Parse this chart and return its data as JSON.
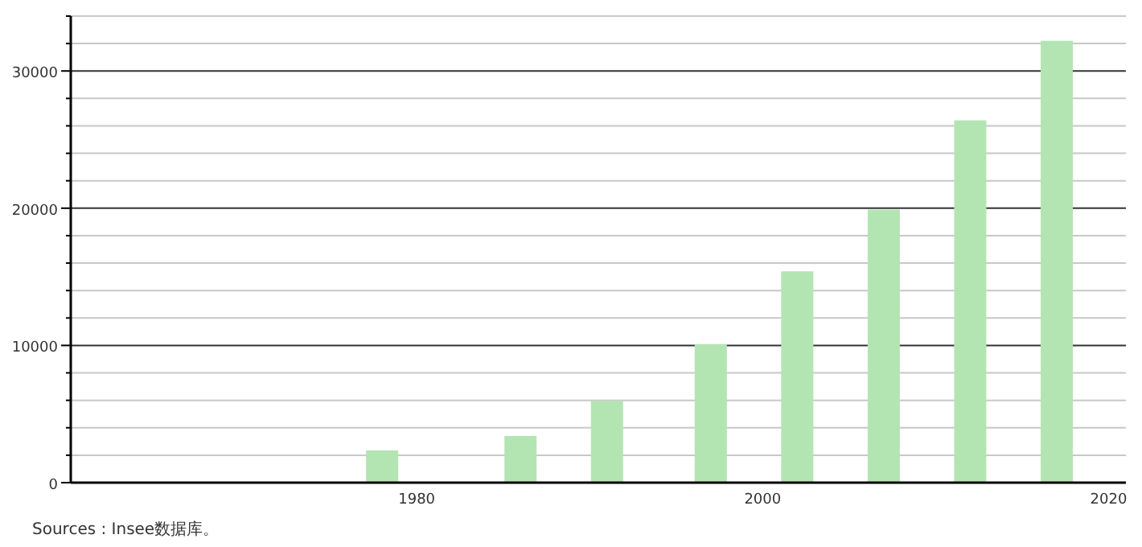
{
  "chart_data": {
    "type": "bar",
    "x": [
      1978,
      1986,
      1991,
      1997,
      2002,
      2007,
      2012,
      2017
    ],
    "values": [
      2350,
      3400,
      5960,
      10100,
      15400,
      19900,
      26400,
      32200
    ],
    "color": "#b3e5b3",
    "xlim": [
      1960,
      2021
    ],
    "xticks": [
      1980,
      2000,
      2020
    ],
    "ylim": [
      0,
      34000
    ],
    "yticks": [
      0,
      {
        "value": 2000,
        "label": null
      },
      {
        "value": 4000,
        "label": null
      },
      {
        "value": 6000,
        "label": null
      },
      {
        "value": 8000,
        "label": null
      },
      10000,
      {
        "value": 12000,
        "label": null
      },
      {
        "value": 14000,
        "label": null
      },
      {
        "value": 16000,
        "label": null
      },
      {
        "value": 18000,
        "label": null
      },
      20000,
      {
        "value": 22000,
        "label": null
      },
      {
        "value": 24000,
        "label": null
      },
      {
        "value": 26000,
        "label": null
      },
      {
        "value": 28000,
        "label": null
      },
      30000,
      {
        "value": 32000,
        "label": null
      },
      {
        "value": 34000,
        "label": null
      }
    ],
    "grid": "y",
    "annotations": [
      "Sources : Insee数据库。"
    ]
  }
}
